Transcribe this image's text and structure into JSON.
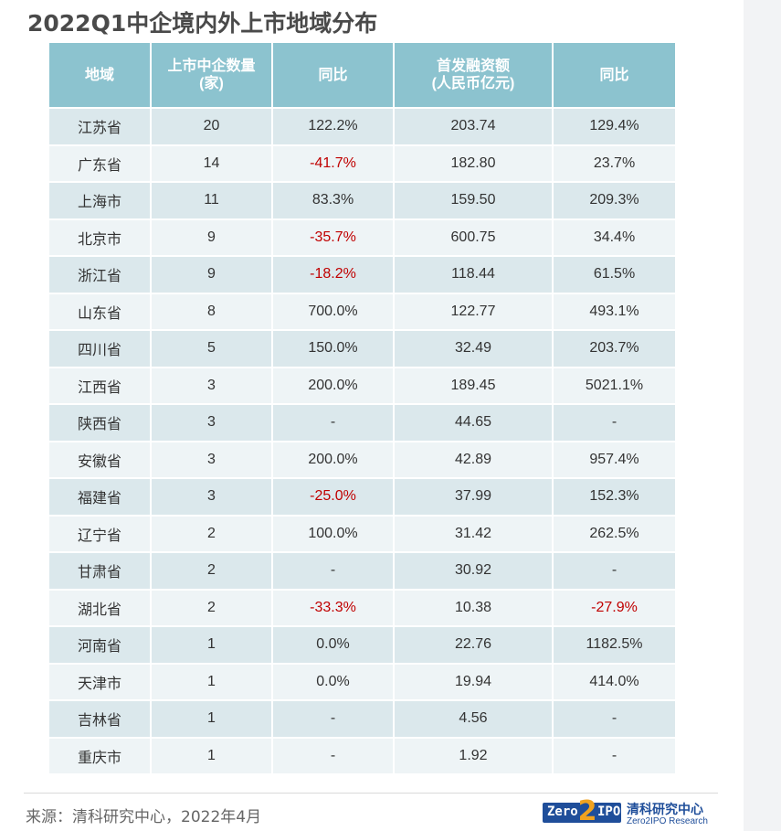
{
  "title": "2022Q1中企境内外上市地域分布",
  "table": {
    "headers": [
      [
        "地域"
      ],
      [
        "上市中企数量",
        "(家)"
      ],
      [
        "同比"
      ],
      [
        "首发融资额",
        "(人民币亿元)"
      ],
      [
        "同比"
      ]
    ],
    "rows": [
      {
        "region": "江苏省",
        "count": "20",
        "count_yoy": "122.2%",
        "amount": "203.74",
        "amount_yoy": "129.4%"
      },
      {
        "region": "广东省",
        "count": "14",
        "count_yoy": "-41.7%",
        "amount": "182.80",
        "amount_yoy": "23.7%"
      },
      {
        "region": "上海市",
        "count": "11",
        "count_yoy": "83.3%",
        "amount": "159.50",
        "amount_yoy": "209.3%"
      },
      {
        "region": "北京市",
        "count": "9",
        "count_yoy": "-35.7%",
        "amount": "600.75",
        "amount_yoy": "34.4%"
      },
      {
        "region": "浙江省",
        "count": "9",
        "count_yoy": "-18.2%",
        "amount": "118.44",
        "amount_yoy": "61.5%"
      },
      {
        "region": "山东省",
        "count": "8",
        "count_yoy": "700.0%",
        "amount": "122.77",
        "amount_yoy": "493.1%"
      },
      {
        "region": "四川省",
        "count": "5",
        "count_yoy": "150.0%",
        "amount": "32.49",
        "amount_yoy": "203.7%"
      },
      {
        "region": "江西省",
        "count": "3",
        "count_yoy": "200.0%",
        "amount": "189.45",
        "amount_yoy": "5021.1%"
      },
      {
        "region": "陕西省",
        "count": "3",
        "count_yoy": "-",
        "amount": "44.65",
        "amount_yoy": "-"
      },
      {
        "region": "安徽省",
        "count": "3",
        "count_yoy": "200.0%",
        "amount": "42.89",
        "amount_yoy": "957.4%"
      },
      {
        "region": "福建省",
        "count": "3",
        "count_yoy": "-25.0%",
        "amount": "37.99",
        "amount_yoy": "152.3%"
      },
      {
        "region": "辽宁省",
        "count": "2",
        "count_yoy": "100.0%",
        "amount": "31.42",
        "amount_yoy": "262.5%"
      },
      {
        "region": "甘肃省",
        "count": "2",
        "count_yoy": "-",
        "amount": "30.92",
        "amount_yoy": "-"
      },
      {
        "region": "湖北省",
        "count": "2",
        "count_yoy": "-33.3%",
        "amount": "10.38",
        "amount_yoy": "-27.9%"
      },
      {
        "region": "河南省",
        "count": "1",
        "count_yoy": "0.0%",
        "amount": "22.76",
        "amount_yoy": "1182.5%"
      },
      {
        "region": "天津市",
        "count": "1",
        "count_yoy": "0.0%",
        "amount": "19.94",
        "amount_yoy": "414.0%"
      },
      {
        "region": "吉林省",
        "count": "1",
        "count_yoy": "-",
        "amount": "4.56",
        "amount_yoy": "-"
      },
      {
        "region": "重庆市",
        "count": "1",
        "count_yoy": "-",
        "amount": "1.92",
        "amount_yoy": "-"
      }
    ]
  },
  "colors": {
    "header_bg": "#8cc3cf",
    "row_odd": "#dbe8ec",
    "row_even": "#eef4f6",
    "negative": "#c00000",
    "brand_blue": "#1f4e9a",
    "brand_orange": "#f0a21f"
  },
  "footer": {
    "source": "来源：清科研究中心，2022年4月",
    "logo_badge_left": "Zero",
    "logo_badge_digit": "2",
    "logo_badge_right": "IPO",
    "logo_cn": "清科研究中心",
    "logo_en": "Zero2IPO Research"
  }
}
